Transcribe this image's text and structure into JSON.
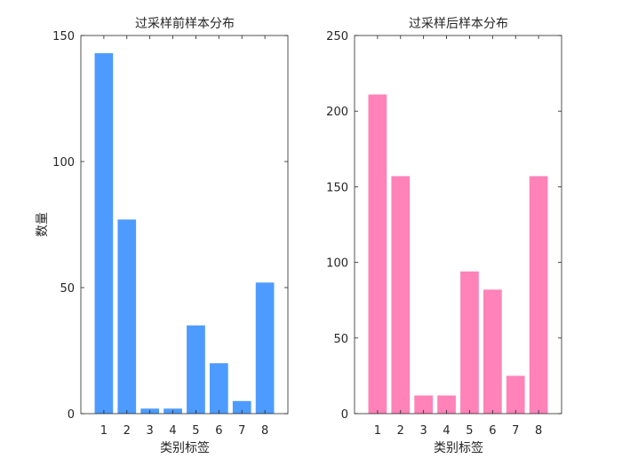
{
  "chart_data": [
    {
      "type": "bar",
      "title": "过采样前样本分布",
      "xlabel": "类别标签",
      "ylabel": "数量",
      "categories": [
        "1",
        "2",
        "3",
        "4",
        "5",
        "6",
        "7",
        "8"
      ],
      "values": [
        143,
        77,
        2,
        2,
        35,
        20,
        5,
        52
      ],
      "ylim": [
        0,
        150
      ],
      "yticks": [
        0,
        50,
        100,
        150
      ],
      "color": "#4d9bff",
      "grid": false
    },
    {
      "type": "bar",
      "title": "过采样后样本分布",
      "xlabel": "类别标签",
      "ylabel": "",
      "categories": [
        "1",
        "2",
        "3",
        "4",
        "5",
        "6",
        "7",
        "8"
      ],
      "values": [
        211,
        157,
        12,
        12,
        94,
        82,
        25,
        157
      ],
      "ylim": [
        0,
        250
      ],
      "yticks": [
        0,
        50,
        100,
        150,
        200,
        250
      ],
      "color": "#ff82b8",
      "grid": false
    }
  ]
}
